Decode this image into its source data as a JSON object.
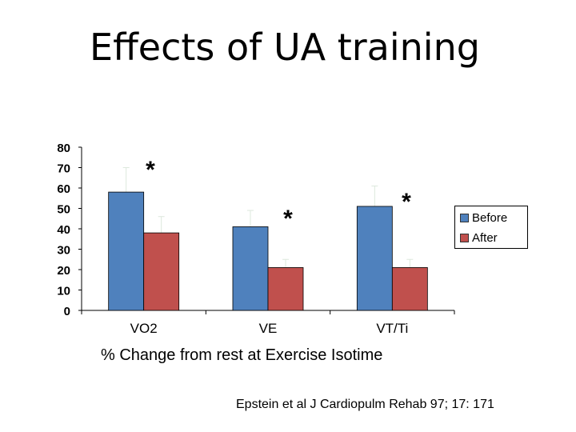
{
  "chart_data": {
    "type": "bar",
    "title": "Effects of UA training",
    "xlabel": "% Change from rest  at Exercise Isotime",
    "ylabel": "",
    "ylim": [
      0,
      80
    ],
    "yticks": [
      "0",
      "10",
      "20",
      "30",
      "40",
      "50",
      "60",
      "70",
      "80"
    ],
    "categories": [
      "VO2",
      "VE",
      "VT/Ti"
    ],
    "series": [
      {
        "name": "Before",
        "color": "#4f81bd",
        "values": [
          58,
          41,
          51
        ],
        "error_upper": [
          70,
          49,
          61
        ]
      },
      {
        "name": "After",
        "color": "#c0504d",
        "values": [
          38,
          21,
          21
        ],
        "error_upper": [
          46,
          25,
          25
        ]
      }
    ],
    "annotations": [
      "*",
      "*",
      "*"
    ],
    "legend": "right"
  },
  "citation": "Epstein et al J Cardiopulm Rehab 97; 17: 171"
}
